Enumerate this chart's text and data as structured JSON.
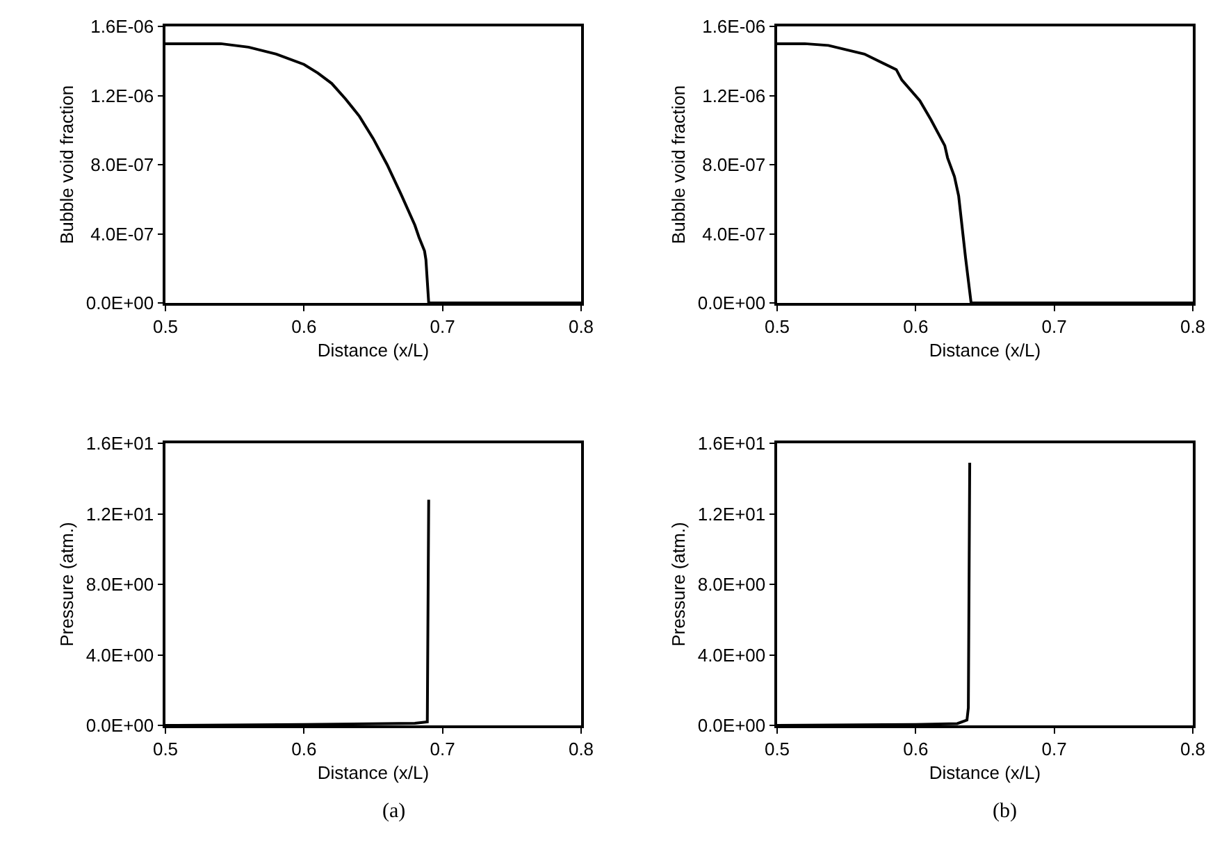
{
  "chart_data": [
    {
      "type": "line",
      "xlabel": "Distance (x/L)",
      "ylabel": "Bubble void fraction",
      "xlim": [
        0.5,
        0.8
      ],
      "xticks": [
        0.5,
        0.6,
        0.7,
        0.8
      ],
      "ylim": [
        0,
        1.6e-06
      ],
      "yticks": [
        {
          "value": 0,
          "label": "0.0E+00"
        },
        {
          "value": 4e-07,
          "label": "4.0E-07"
        },
        {
          "value": 8e-07,
          "label": "8.0E-07"
        },
        {
          "value": 1.2e-06,
          "label": "1.2E-06"
        },
        {
          "value": 1.6e-06,
          "label": "1.6E-06"
        }
      ],
      "grid": false,
      "marker": "none",
      "line_style": "solid",
      "series": [
        {
          "color": "#000000",
          "x": [
            0.5,
            0.52,
            0.54,
            0.56,
            0.58,
            0.6,
            0.61,
            0.62,
            0.63,
            0.64,
            0.65,
            0.66,
            0.67,
            0.68,
            0.683,
            0.687,
            0.688,
            0.69,
            0.7,
            0.8
          ],
          "values": [
            1.5e-06,
            1.5e-06,
            1.5e-06,
            1.48e-06,
            1.44e-06,
            1.38e-06,
            1.33e-06,
            1.27e-06,
            1.18e-06,
            1.08e-06,
            9.5e-07,
            8e-07,
            6.3e-07,
            4.5e-07,
            3.8e-07,
            3e-07,
            2.5e-07,
            0,
            0,
            0
          ]
        }
      ]
    },
    {
      "type": "line",
      "xlabel": "Distance (x/L)",
      "ylabel": "Bubble void fraction",
      "xlim": [
        0.5,
        0.8
      ],
      "xticks": [
        0.5,
        0.6,
        0.7,
        0.8
      ],
      "ylim": [
        0,
        1.6e-06
      ],
      "yticks": [
        {
          "value": 0,
          "label": "0.0E+00"
        },
        {
          "value": 4e-07,
          "label": "4.0E-07"
        },
        {
          "value": 8e-07,
          "label": "8.0E-07"
        },
        {
          "value": 1.2e-06,
          "label": "1.2E-06"
        },
        {
          "value": 1.6e-06,
          "label": "1.6E-06"
        }
      ],
      "grid": false,
      "marker": "none",
      "line_style": "solid",
      "series": [
        {
          "color": "#000000",
          "x": [
            0.5,
            0.52,
            0.537,
            0.563,
            0.586,
            0.59,
            0.603,
            0.611,
            0.621,
            0.623,
            0.628,
            0.631,
            0.636,
            0.64,
            0.7,
            0.8
          ],
          "values": [
            1.5e-06,
            1.5e-06,
            1.49e-06,
            1.44e-06,
            1.35e-06,
            1.29e-06,
            1.17e-06,
            1.06e-06,
            9.1e-07,
            8.4e-07,
            7.3e-07,
            6.2e-07,
            2.6e-07,
            0,
            0,
            0
          ]
        }
      ]
    },
    {
      "type": "line",
      "xlabel": "Distance (x/L)",
      "ylabel": "Pressure (atm.)",
      "annotations": [
        "(a)"
      ],
      "xlim": [
        0.5,
        0.8
      ],
      "xticks": [
        0.5,
        0.6,
        0.7,
        0.8
      ],
      "ylim": [
        0,
        16
      ],
      "yticks": [
        {
          "value": 0,
          "label": "0.0E+00"
        },
        {
          "value": 4,
          "label": "4.0E+00"
        },
        {
          "value": 8,
          "label": "8.0E+00"
        },
        {
          "value": 12,
          "label": "1.2E+01"
        },
        {
          "value": 16,
          "label": "1.6E+01"
        }
      ],
      "grid": false,
      "marker": "none",
      "line_style": "solid",
      "series": [
        {
          "color": "#000000",
          "x": [
            0.5,
            0.6,
            0.68,
            0.689,
            0.69
          ],
          "values": [
            0,
            0.05,
            0.12,
            0.2,
            12.8
          ]
        }
      ]
    },
    {
      "type": "line",
      "xlabel": "Distance (x/L)",
      "ylabel": "Pressure (atm.)",
      "annotations": [
        "(b)"
      ],
      "xlim": [
        0.5,
        0.8
      ],
      "xticks": [
        0.5,
        0.6,
        0.7,
        0.8
      ],
      "ylim": [
        0,
        16
      ],
      "yticks": [
        {
          "value": 0,
          "label": "0.0E+00"
        },
        {
          "value": 4,
          "label": "4.0E+00"
        },
        {
          "value": 8,
          "label": "8.0E+00"
        },
        {
          "value": 12,
          "label": "1.2E+01"
        },
        {
          "value": 16,
          "label": "1.6E+01"
        }
      ],
      "grid": false,
      "marker": "none",
      "line_style": "solid",
      "series": [
        {
          "color": "#000000",
          "x": [
            0.5,
            0.6,
            0.63,
            0.637,
            0.638,
            0.639
          ],
          "values": [
            0,
            0.05,
            0.1,
            0.3,
            1,
            14.9
          ]
        }
      ]
    }
  ]
}
